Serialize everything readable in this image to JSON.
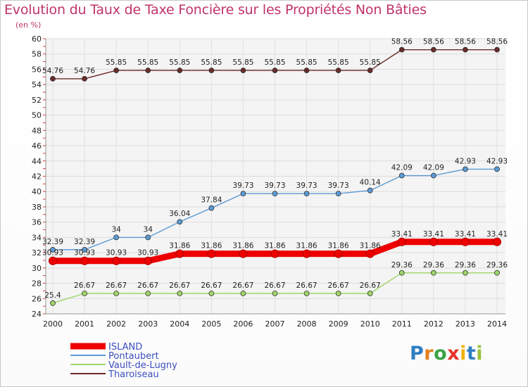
{
  "header": {
    "title": "Evolution du Taux de Taxe Foncière sur les Propriétés Non Bâties",
    "subtitle": "(en %)"
  },
  "logo": {
    "letters": [
      "P",
      "r",
      "o",
      "x",
      "i",
      "t",
      "i"
    ]
  },
  "colors": {
    "title": "#c1336b",
    "ISLAND": "#ee0000",
    "Pontaubert": "#5b9bd5",
    "Vault-de-Lugny": "#9fd468",
    "Tharoiseau": "#6a2b2b"
  },
  "chart_data": {
    "type": "line",
    "title": "Evolution du Taux de Taxe Foncière sur les Propriétés Non Bâties",
    "ylabel": "(en %)",
    "xlabel": "",
    "x": [
      "2000",
      "2001",
      "2002",
      "2003",
      "2004",
      "2005",
      "2006",
      "2007",
      "2008",
      "2009",
      "2010",
      "2011",
      "2012",
      "2013",
      "2014"
    ],
    "ylim": [
      24,
      60
    ],
    "yticks": [
      24,
      26,
      28,
      30,
      32,
      34,
      36,
      38,
      40,
      42,
      44,
      46,
      48,
      50,
      52,
      54,
      56,
      58,
      60
    ],
    "grid": true,
    "legend_position": "bottom-left",
    "series": [
      {
        "name": "ISLAND",
        "values": [
          30.93,
          30.93,
          30.93,
          30.93,
          31.86,
          31.86,
          31.86,
          31.86,
          31.86,
          31.86,
          31.86,
          33.41,
          33.41,
          33.41,
          33.41
        ],
        "labels": [
          "30.93",
          "30.93",
          "30.93",
          "30.93",
          "31.86",
          "31.86",
          "31.86",
          "31.86",
          "31.86",
          "31.86",
          "31.86",
          "33.41",
          "33.41",
          "33.41",
          "33.41"
        ]
      },
      {
        "name": "Pontaubert",
        "values": [
          32.39,
          32.39,
          34,
          34,
          36.04,
          37.84,
          39.73,
          39.73,
          39.73,
          39.73,
          40.14,
          42.09,
          42.09,
          42.93,
          42.93
        ],
        "labels": [
          "32.39",
          "32.39",
          "34",
          "34",
          "36.04",
          "37.84",
          "39.73",
          "39.73",
          "39.73",
          "39.73",
          "40.14",
          "42.09",
          "42.09",
          "42.93",
          "42.93"
        ]
      },
      {
        "name": "Vault-de-Lugny",
        "values": [
          25.4,
          26.67,
          26.67,
          26.67,
          26.67,
          26.67,
          26.67,
          26.67,
          26.67,
          26.67,
          26.67,
          29.36,
          29.36,
          29.36,
          29.36
        ],
        "labels": [
          "25.4",
          "26.67",
          "26.67",
          "26.67",
          "26.67",
          "26.67",
          "26.67",
          "26.67",
          "26.67",
          "26.67",
          "26.67",
          "29.36",
          "29.36",
          "29.36",
          "29.36"
        ]
      },
      {
        "name": "Tharoiseau",
        "values": [
          54.76,
          54.76,
          55.85,
          55.85,
          55.85,
          55.85,
          55.85,
          55.85,
          55.85,
          55.85,
          55.85,
          58.56,
          58.56,
          58.56,
          58.56
        ],
        "labels": [
          "54.76",
          "54.76",
          "55.85",
          "55.85",
          "55.85",
          "55.85",
          "55.85",
          "55.85",
          "55.85",
          "55.85",
          "55.85",
          "58.56",
          "58.56",
          "58.56",
          "58.56"
        ]
      }
    ]
  }
}
